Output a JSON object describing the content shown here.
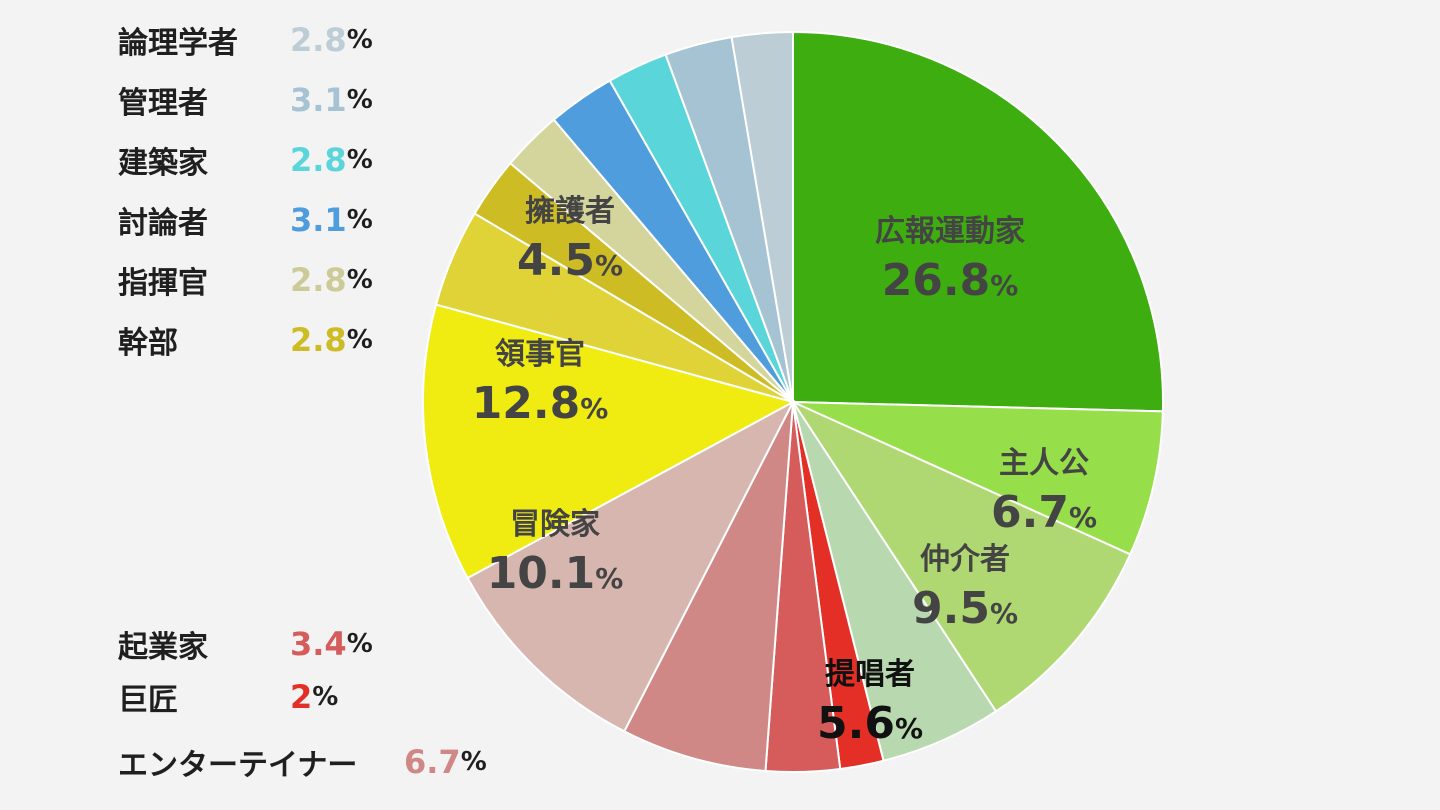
{
  "chart_data": {
    "type": "pie",
    "title": "",
    "slices": [
      {
        "label": "広報運動家",
        "value": 26.8,
        "color": "#3ead10",
        "text_color": "#444444"
      },
      {
        "label": "主人公",
        "value": 6.7,
        "color": "#97df4a",
        "text_color": "#444444"
      },
      {
        "label": "仲介者",
        "value": 9.5,
        "color": "#b0d872",
        "text_color": "#444444"
      },
      {
        "label": "提唱者",
        "value": 5.6,
        "color": "#b8d8b0",
        "text_color": "#111111"
      },
      {
        "label": "巨匠",
        "value": 2,
        "color": "#e42f27",
        "text_color": "#e42f27"
      },
      {
        "label": "起業家",
        "value": 3.4,
        "color": "#d65c5c",
        "text_color": "#d65c5c"
      },
      {
        "label": "エンターテイナー",
        "value": 6.7,
        "color": "#d08886",
        "text_color": "#d08886"
      },
      {
        "label": "冒険家",
        "value": 10.1,
        "color": "#d6b6ae",
        "text_color": "#444444"
      },
      {
        "label": "領事官",
        "value": 12.8,
        "color": "#f0ec12",
        "text_color": "#444444"
      },
      {
        "label": "擁護者",
        "value": 4.5,
        "color": "#e0d338",
        "text_color": "#444444"
      },
      {
        "label": "幹部",
        "value": 2.8,
        "color": "#cebc24",
        "text_color": "#cebc24"
      },
      {
        "label": "指揮官",
        "value": 2.8,
        "color": "#d4d59c",
        "text_color": "#cccb98"
      },
      {
        "label": "討論者",
        "value": 3.1,
        "color": "#4f9ddc",
        "text_color": "#4f9ddc"
      },
      {
        "label": "建築家",
        "value": 2.8,
        "color": "#5ad6db",
        "text_color": "#5ad6db"
      },
      {
        "label": "管理者",
        "value": 3.1,
        "color": "#a5c3d3",
        "text_color": "#a5c3d3"
      },
      {
        "label": "論理学者",
        "value": 2.8,
        "color": "#bccdd6",
        "text_color": "#bccdd6"
      }
    ],
    "percent_symbol": "%",
    "legend_entries": [
      "論理学者",
      "管理者",
      "建築家",
      "討論者",
      "指揮官",
      "幹部",
      "起業家",
      "巨匠",
      "エンターテイナー"
    ],
    "in_slice_labels": [
      "広報運動家",
      "主人公",
      "仲介者",
      "提唱者",
      "冒険家",
      "領事官",
      "擁護者"
    ]
  }
}
